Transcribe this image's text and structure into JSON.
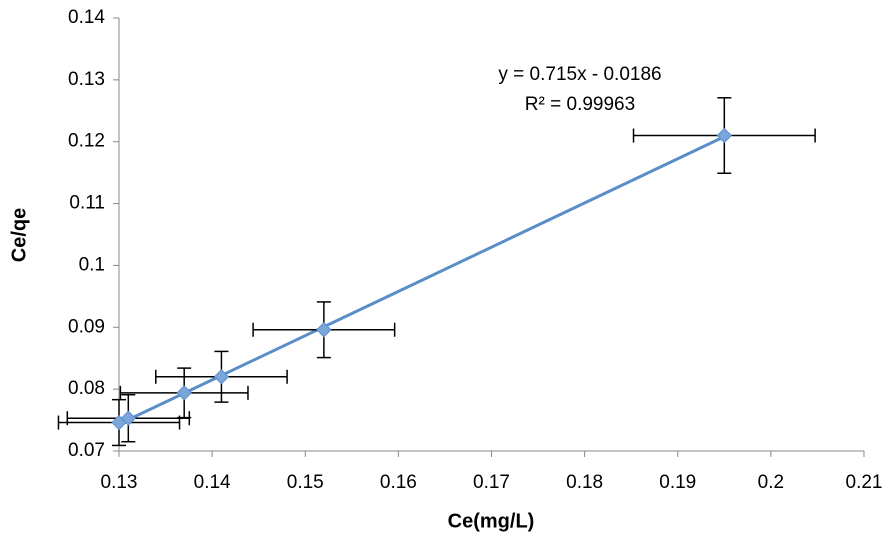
{
  "chart_data": {
    "type": "scatter",
    "x_label": "Ce(mg/L)",
    "y_label": "Ce/qe",
    "x": [
      0.13,
      0.131,
      0.137,
      0.141,
      0.152,
      0.195
    ],
    "values": [
      0.0746,
      0.0753,
      0.0794,
      0.082,
      0.0896,
      0.121
    ],
    "x_err": [
      0.0065,
      0.00655,
      0.00685,
      0.00705,
      0.0076,
      0.00975
    ],
    "y_err": [
      0.0037,
      0.0038,
      0.004,
      0.0041,
      0.0045,
      0.0061
    ],
    "color": "#7aa6dc",
    "trendline_color": "#5b8ec8",
    "error_color": "#000000",
    "trendline": {
      "slope": 0.715,
      "intercept": -0.0186,
      "label": "y = 0.715x - 0.0186",
      "r2_label": "R² = 0.99963"
    },
    "xlim": [
      0.13,
      0.21
    ],
    "ylim": [
      0.07,
      0.14
    ],
    "xticks": [
      0.13,
      0.14,
      0.15,
      0.16,
      0.17,
      0.18,
      0.19,
      0.2,
      0.21
    ],
    "yticks": [
      0.07,
      0.08,
      0.09,
      0.1,
      0.11,
      0.12,
      0.13,
      0.14
    ],
    "grid": false
  }
}
